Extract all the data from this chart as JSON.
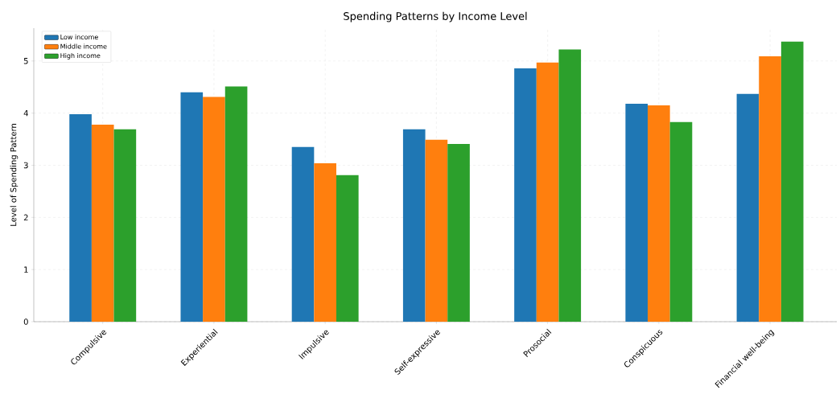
{
  "chart_data": {
    "type": "bar",
    "title": "Spending Patterns by Income Level",
    "ylabel": "Level of Spending Pattern",
    "categories": [
      "Compulsive",
      "Experiential",
      "Impulsive",
      "Self-expressive",
      "Prosocial",
      "Conspicuous",
      "Financial well-being"
    ],
    "series": [
      {
        "name": "Low income",
        "color": "#1f77b4",
        "values": [
          3.98,
          4.4,
          3.35,
          3.69,
          4.86,
          4.18,
          4.37
        ]
      },
      {
        "name": "Middle income",
        "color": "#ff7f0e",
        "values": [
          3.78,
          4.31,
          3.04,
          3.49,
          4.97,
          4.15,
          5.09
        ]
      },
      {
        "name": "High income",
        "color": "#2ca02c",
        "values": [
          3.69,
          4.51,
          2.81,
          3.41,
          5.22,
          3.83,
          5.37
        ]
      }
    ],
    "ylim": [
      0,
      5.63
    ],
    "yticks": [
      0,
      1,
      2,
      3,
      4,
      5
    ],
    "grid": true,
    "legend": "top left"
  }
}
